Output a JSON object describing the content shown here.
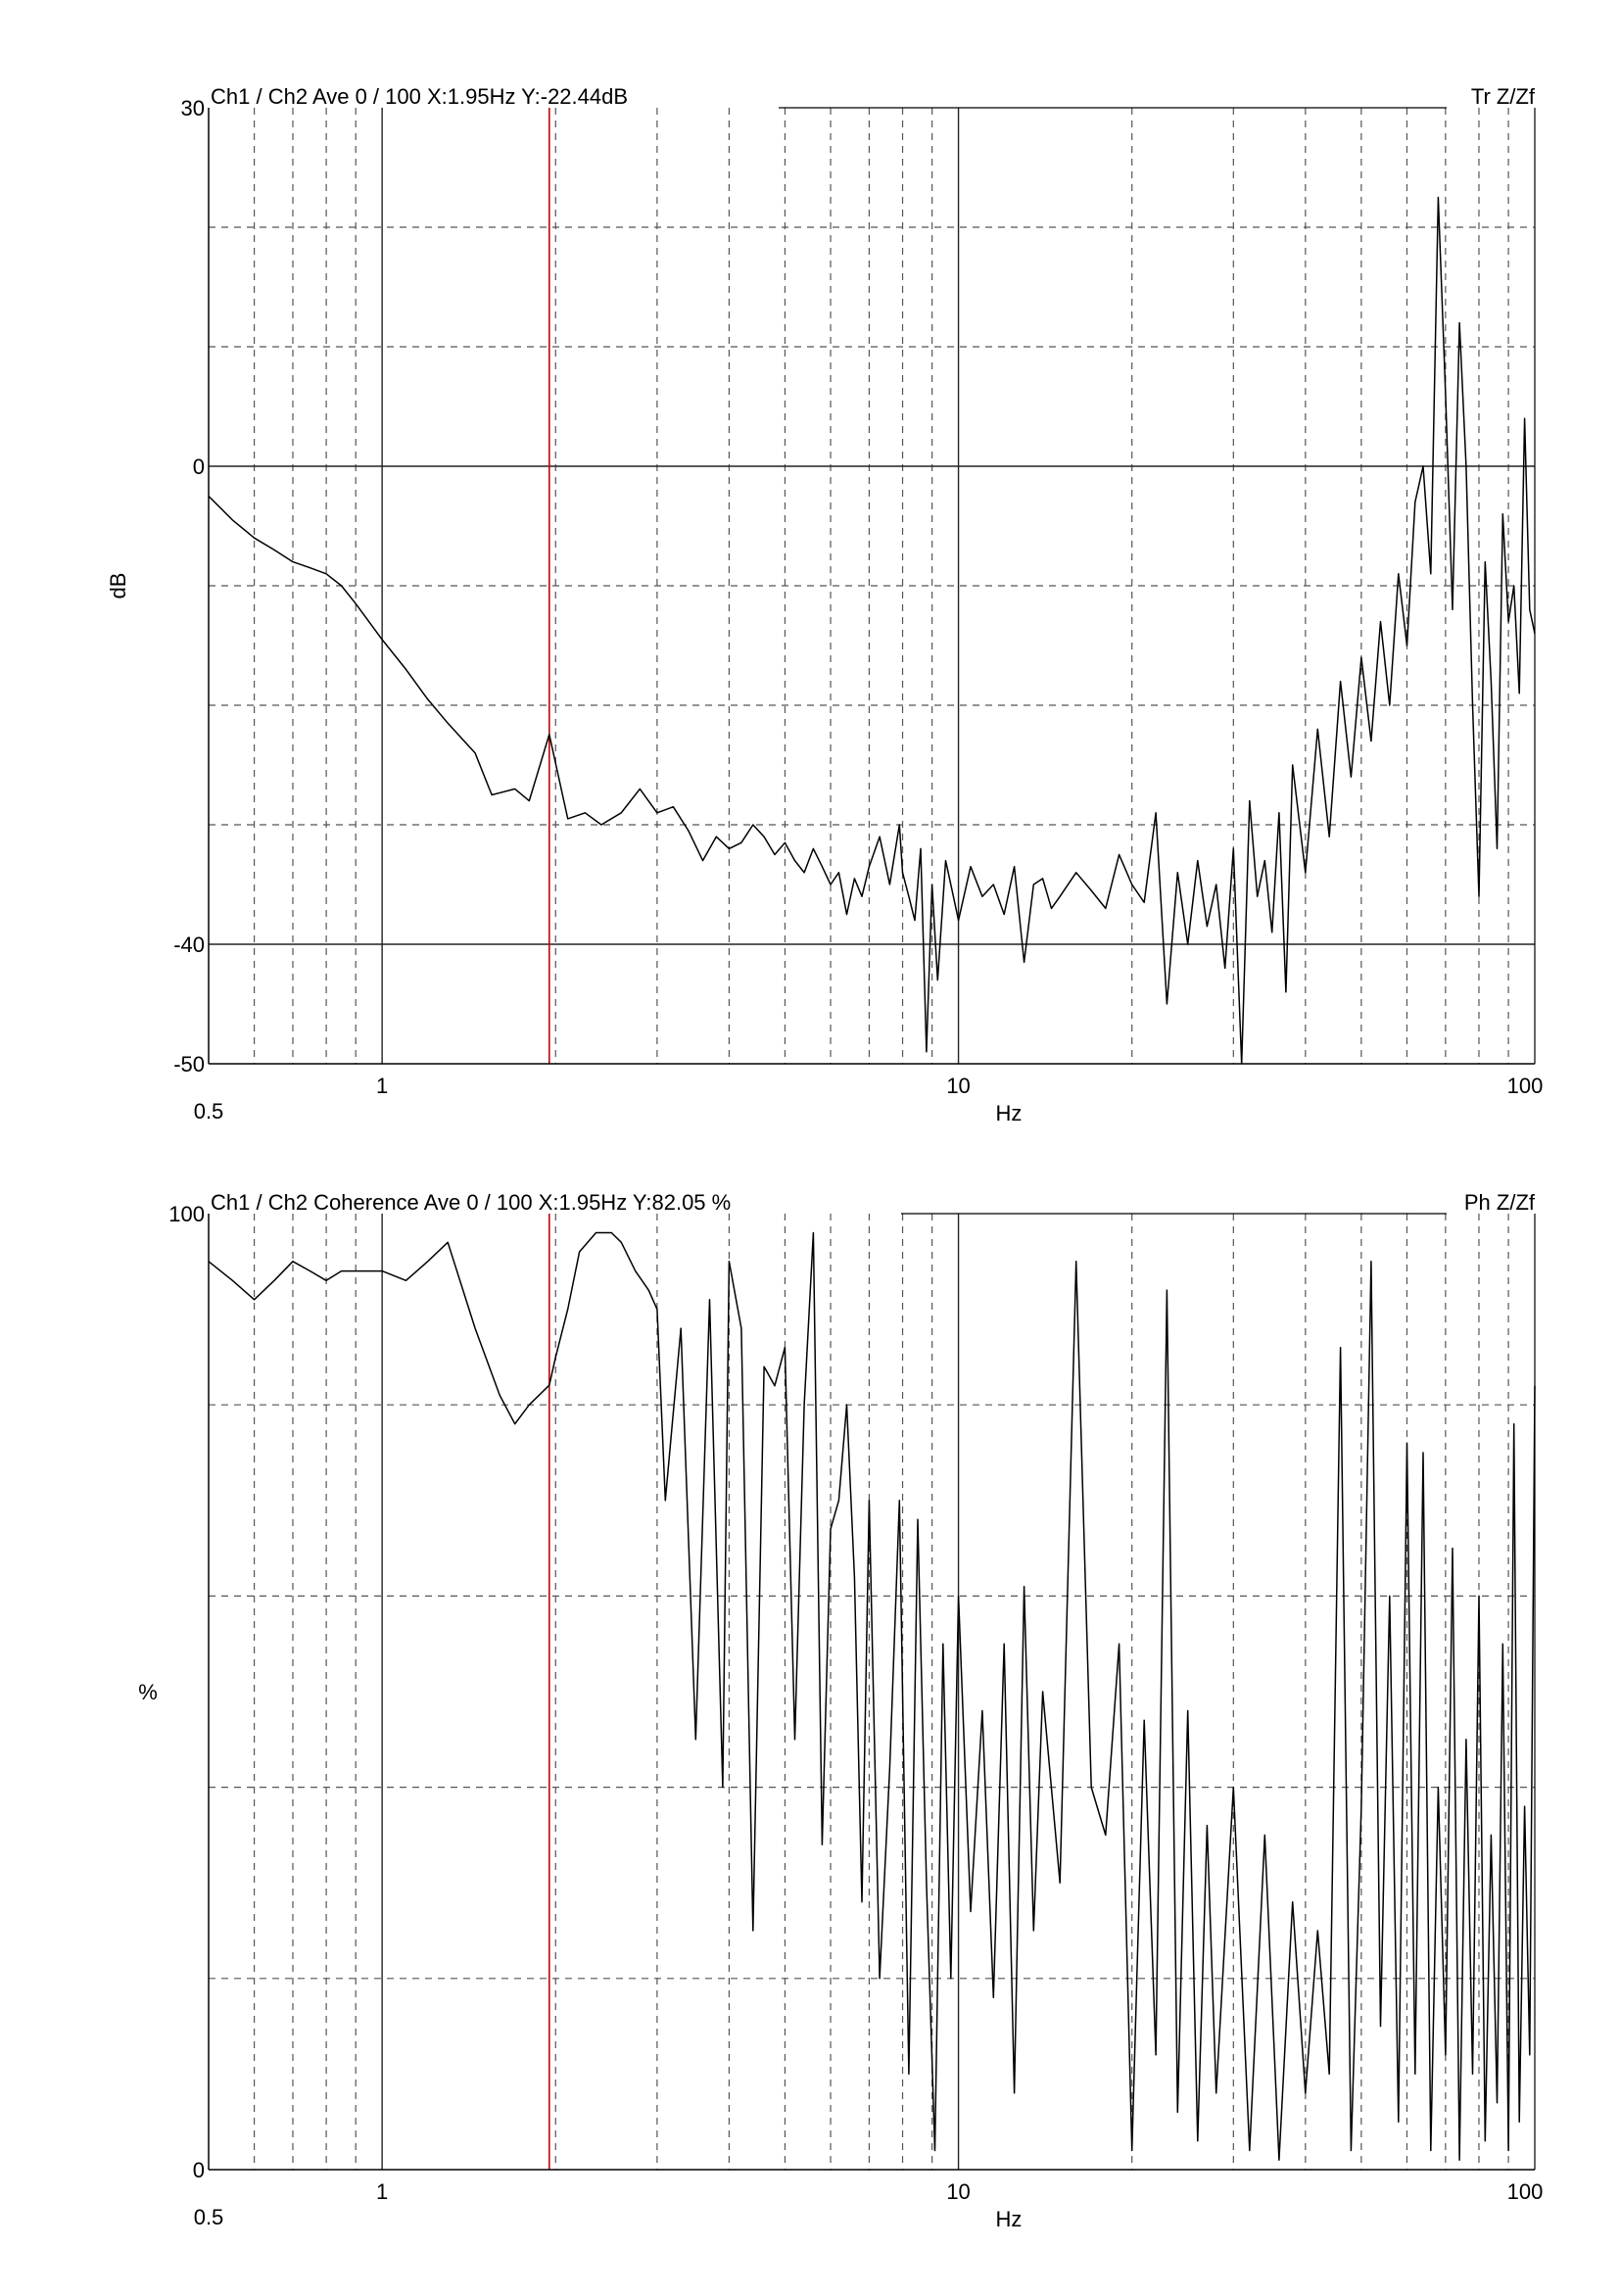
{
  "chart_data": [
    {
      "type": "line",
      "header": "Ch1 / Ch2  Ave 0 / 100  X:1.95Hz  Y:-22.44dB",
      "tag": "Tr Z/Zf",
      "xlabel": "Hz",
      "ylabel": "dB",
      "x_scale": "log",
      "xlim": [
        0.5,
        100
      ],
      "ylim": [
        -50,
        30
      ],
      "x_tick_labels": [
        "0.5",
        "1",
        "10",
        "100"
      ],
      "y_tick_labels": [
        "30",
        "0",
        "-40",
        "-50"
      ],
      "grid": true,
      "cursor_x": 1.95,
      "cursor_color": "#cc0000",
      "trace_color": "#000000",
      "series": [
        {
          "x": [
            0.5,
            0.55,
            0.6,
            0.65,
            0.7,
            0.75,
            0.8,
            0.85,
            0.9,
            1.0,
            1.1,
            1.2,
            1.3,
            1.45,
            1.55,
            1.7,
            1.8,
            1.95,
            2.1,
            2.25,
            2.4,
            2.6,
            2.8,
            3.0,
            3.2,
            3.4,
            3.6,
            3.8,
            4.0,
            4.2,
            4.4,
            4.6,
            4.8,
            5.0,
            5.2,
            5.4,
            5.6,
            5.8,
            6.0,
            6.2,
            6.4,
            6.6,
            6.8,
            7.0,
            7.3,
            7.6,
            7.9,
            8.0,
            8.2,
            8.4,
            8.6,
            8.8,
            9.0,
            9.2,
            9.5,
            9.8,
            10.0,
            10.5,
            11.0,
            11.5,
            12.0,
            12.5,
            13.0,
            13.5,
            14.0,
            14.5,
            15.0,
            16.0,
            17.0,
            18.0,
            19.0,
            20.0,
            21.0,
            22.0,
            23.0,
            24.0,
            25.0,
            26.0,
            27.0,
            28.0,
            29.0,
            30.0,
            31.0,
            32.0,
            33.0,
            34.0,
            35.0,
            36.0,
            37.0,
            38.0,
            40.0,
            42.0,
            44.0,
            46.0,
            48.0,
            50.0,
            52.0,
            54.0,
            56.0,
            58.0,
            60.0,
            62.0,
            64.0,
            66.0,
            68.0,
            70.0,
            72.0,
            74.0,
            76.0,
            78.0,
            80.0,
            82.0,
            84.0,
            86.0,
            88.0,
            90.0,
            92.0,
            94.0,
            96.0,
            98.0,
            100.0
          ],
          "values": [
            -2.5,
            -4.5,
            -6.0,
            -7.0,
            -8.0,
            -8.5,
            -9.0,
            -10.0,
            -11.5,
            -14.5,
            -17.0,
            -19.5,
            -21.5,
            -24.0,
            -27.5,
            -27.0,
            -28.0,
            -22.44,
            -29.5,
            -29.0,
            -30.0,
            -29.0,
            -27.0,
            -29.0,
            -28.5,
            -30.5,
            -33.0,
            -31.0,
            -32.0,
            -31.5,
            -30.0,
            -31.0,
            -32.5,
            -31.5,
            -33.0,
            -34.0,
            -32.0,
            -33.5,
            -35.0,
            -34.0,
            -37.5,
            -34.5,
            -36.0,
            -33.5,
            -31.0,
            -35.0,
            -30.0,
            -34.0,
            -36.0,
            -38.0,
            -32.0,
            -49.0,
            -35.0,
            -43.0,
            -33.0,
            -36.0,
            -38.0,
            -33.5,
            -36.0,
            -35.0,
            -37.5,
            -33.5,
            -41.5,
            -35.0,
            -34.5,
            -37.0,
            -36.0,
            -34.0,
            -35.5,
            -37.0,
            -32.5,
            -35.0,
            -36.5,
            -29.0,
            -45.0,
            -34.0,
            -40.0,
            -33.0,
            -38.5,
            -35.0,
            -42.0,
            -32.0,
            -50.0,
            -28.0,
            -36.0,
            -33.0,
            -39.0,
            -29.0,
            -44.0,
            -25.0,
            -34.0,
            -22.0,
            -31.0,
            -18.0,
            -26.0,
            -16.0,
            -23.0,
            -13.0,
            -20.0,
            -9.0,
            -15.0,
            -3.0,
            0.0,
            -9.0,
            22.5,
            6.0,
            -12.0,
            12.0,
            0.0,
            -20.0,
            -36.0,
            -8.0,
            -18.0,
            -32.0,
            -4.0,
            -13.0,
            -10.0,
            -19.0,
            4.0,
            -12.0,
            -14.0
          ]
        }
      ]
    },
    {
      "type": "line",
      "header": "Ch1 / Ch2  Coherence Ave 0 / 100  X:1.95Hz  Y:82.05 %",
      "tag": "Ph Z/Zf",
      "xlabel": "Hz",
      "ylabel": "%",
      "x_scale": "log",
      "xlim": [
        0.5,
        100
      ],
      "ylim": [
        0,
        100
      ],
      "x_tick_labels": [
        "0.5",
        "1",
        "10",
        "100"
      ],
      "y_tick_labels": [
        "100",
        "0"
      ],
      "grid": true,
      "cursor_x": 1.95,
      "cursor_color": "#cc0000",
      "trace_color": "#000000",
      "series": [
        {
          "x": [
            0.5,
            0.55,
            0.6,
            0.65,
            0.7,
            0.75,
            0.8,
            0.85,
            0.9,
            1.0,
            1.1,
            1.2,
            1.3,
            1.45,
            1.6,
            1.7,
            1.8,
            1.95,
            2.0,
            2.1,
            2.2,
            2.35,
            2.5,
            2.6,
            2.75,
            2.9,
            3.0,
            3.1,
            3.3,
            3.5,
            3.7,
            3.9,
            4.0,
            4.2,
            4.4,
            4.6,
            4.8,
            5.0,
            5.2,
            5.4,
            5.6,
            5.8,
            6.0,
            6.2,
            6.4,
            6.6,
            6.8,
            7.0,
            7.3,
            7.6,
            7.9,
            8.2,
            8.5,
            8.8,
            9.1,
            9.4,
            9.7,
            10.0,
            10.5,
            11.0,
            11.5,
            12.0,
            12.5,
            13.0,
            13.5,
            14.0,
            15.0,
            16.0,
            17.0,
            18.0,
            19.0,
            20.0,
            21.0,
            22.0,
            23.0,
            24.0,
            25.0,
            26.0,
            27.0,
            28.0,
            30.0,
            32.0,
            34.0,
            36.0,
            38.0,
            40.0,
            42.0,
            44.0,
            46.0,
            48.0,
            50.0,
            52.0,
            54.0,
            56.0,
            58.0,
            60.0,
            62.0,
            64.0,
            66.0,
            68.0,
            70.0,
            72.0,
            74.0,
            76.0,
            78.0,
            80.0,
            82.0,
            84.0,
            86.0,
            88.0,
            90.0,
            92.0,
            94.0,
            96.0,
            98.0,
            100.0
          ],
          "values": [
            95,
            93,
            91,
            93,
            95,
            94,
            93,
            94,
            94,
            94,
            93,
            95,
            97,
            88,
            81,
            78,
            80,
            82.05,
            85,
            90,
            96,
            98,
            98,
            97,
            94,
            92,
            90,
            70,
            88,
            45,
            91,
            40,
            95,
            88,
            25,
            84,
            82,
            86,
            45,
            80,
            98,
            34,
            67,
            70,
            80,
            62,
            28,
            70,
            20,
            42,
            70,
            10,
            68,
            30,
            2,
            55,
            20,
            60,
            27,
            48,
            18,
            55,
            8,
            61,
            25,
            50,
            30,
            95,
            40,
            35,
            55,
            2,
            47,
            12,
            92,
            6,
            48,
            3,
            36,
            8,
            40,
            2,
            35,
            1,
            28,
            8,
            25,
            10,
            86,
            2,
            38,
            95,
            15,
            60,
            5,
            76,
            10,
            75,
            2,
            40,
            12,
            65,
            1,
            45,
            10,
            60,
            3,
            35,
            7,
            55,
            2,
            78,
            5,
            38,
            12,
            82
          ]
        }
      ]
    }
  ]
}
